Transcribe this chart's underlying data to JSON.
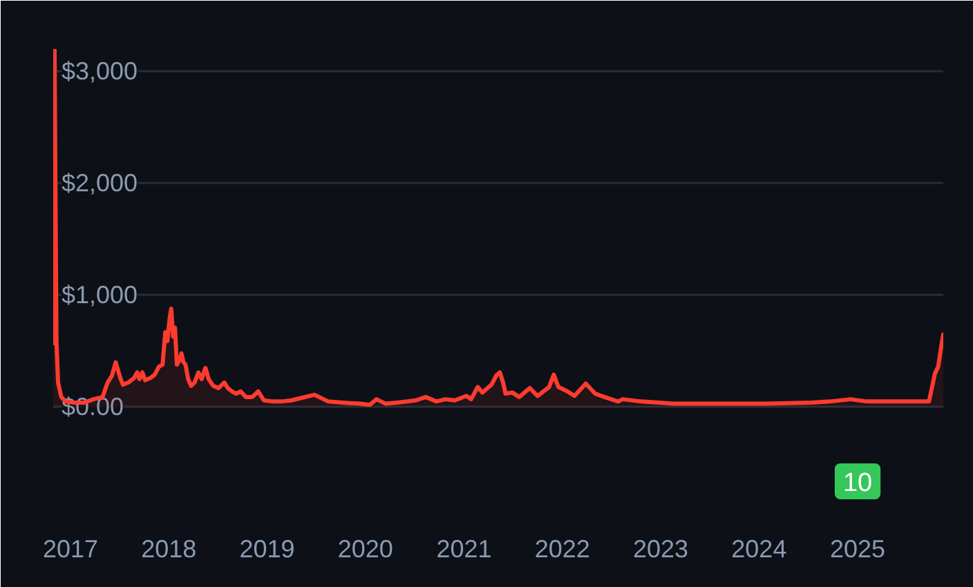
{
  "chart_data": {
    "type": "area",
    "x": [
      "2016-10-29",
      "2016-11-03",
      "2016-11-10",
      "2016-11-16",
      "2016-11-28",
      "2016-12-15",
      "2017-01-16",
      "2017-02-21",
      "2017-03-28",
      "2017-04-30",
      "2017-05-19",
      "2017-06-04",
      "2017-06-18",
      "2017-07-05",
      "2017-07-15",
      "2017-08-04",
      "2017-08-25",
      "2017-09-06",
      "2017-09-14",
      "2017-09-25",
      "2017-10-05",
      "2017-10-25",
      "2017-11-10",
      "2017-11-25",
      "2017-12-09",
      "2017-12-19",
      "2017-12-27",
      "2018-01-04",
      "2018-01-10",
      "2018-01-17",
      "2018-01-24",
      "2018-01-31",
      "2018-02-10",
      "2018-02-17",
      "2018-02-25",
      "2018-03-04",
      "2018-03-14",
      "2018-03-25",
      "2018-04-07",
      "2018-04-21",
      "2018-05-03",
      "2018-05-17",
      "2018-05-29",
      "2018-06-15",
      "2018-07-05",
      "2018-07-26",
      "2018-08-08",
      "2018-08-24",
      "2018-09-08",
      "2018-09-25",
      "2018-10-14",
      "2018-11-07",
      "2018-11-29",
      "2018-12-20",
      "2019-01-23",
      "2019-02-24",
      "2019-04-01",
      "2019-05-05",
      "2019-06-26",
      "2019-08-16",
      "2019-10-06",
      "2019-12-13",
      "2020-01-17",
      "2020-02-11",
      "2020-03-16",
      "2020-04-28",
      "2020-07-06",
      "2020-08-12",
      "2020-09-20",
      "2020-10-24",
      "2020-11-28",
      "2021-01-10",
      "2021-01-27",
      "2021-02-21",
      "2021-03-10",
      "2021-04-13",
      "2021-04-30",
      "2021-05-14",
      "2021-05-26",
      "2021-06-04",
      "2021-06-29",
      "2021-07-25",
      "2021-09-02",
      "2021-10-01",
      "2021-11-13",
      "2021-11-30",
      "2021-12-17",
      "2022-01-20",
      "2022-02-15",
      "2022-03-29",
      "2022-05-03",
      "2022-06-06",
      "2022-07-27",
      "2022-08-13",
      "2022-10-21",
      "2023-02-18",
      "2023-07-04",
      "2024-01-25",
      "2024-07-14",
      "2024-09-20",
      "2024-12-06",
      "2025-02-04",
      "2025-05-18",
      "2025-07-25",
      "2025-09-23",
      "2025-10-15",
      "2025-10-27",
      "2025-11-08",
      "2025-11-15"
    ],
    "series": [
      {
        "color": "#ff3b30",
        "values": [
          570,
          3190,
          590,
          220,
          90,
          50,
          40,
          40,
          70,
          90,
          220,
          280,
          400,
          260,
          200,
          220,
          260,
          310,
          250,
          310,
          240,
          260,
          290,
          360,
          380,
          670,
          590,
          790,
          880,
          630,
          710,
          380,
          420,
          480,
          400,
          380,
          250,
          190,
          220,
          310,
          250,
          350,
          250,
          190,
          170,
          220,
          170,
          140,
          120,
          140,
          90,
          90,
          140,
          60,
          50,
          50,
          60,
          80,
          110,
          50,
          40,
          30,
          20,
          70,
          30,
          40,
          60,
          90,
          50,
          70,
          60,
          100,
          70,
          180,
          130,
          200,
          280,
          310,
          220,
          120,
          130,
          90,
          170,
          100,
          180,
          290,
          180,
          140,
          100,
          210,
          120,
          90,
          50,
          70,
          50,
          30,
          30,
          30,
          40,
          50,
          70,
          50,
          50,
          50,
          50,
          300,
          360,
          550,
          650
        ]
      }
    ],
    "xlim": [
      "2016-10-29",
      "2025-11-15"
    ],
    "ylim": [
      -960,
      3200
    ],
    "xticks": [
      "2017",
      "2018",
      "2019",
      "2020",
      "2021",
      "2022",
      "2023",
      "2024",
      "2025"
    ],
    "yticks": [
      {
        "value": 0,
        "label": "$0.00"
      },
      {
        "value": 1000,
        "label": "$1,000"
      },
      {
        "value": 2000,
        "label": "$2,000"
      },
      {
        "value": 3000,
        "label": "$3,000"
      }
    ],
    "grid": "y",
    "line_style": "solid",
    "annotations": [
      {
        "text": "10",
        "x": "2025-01"
      }
    ]
  }
}
